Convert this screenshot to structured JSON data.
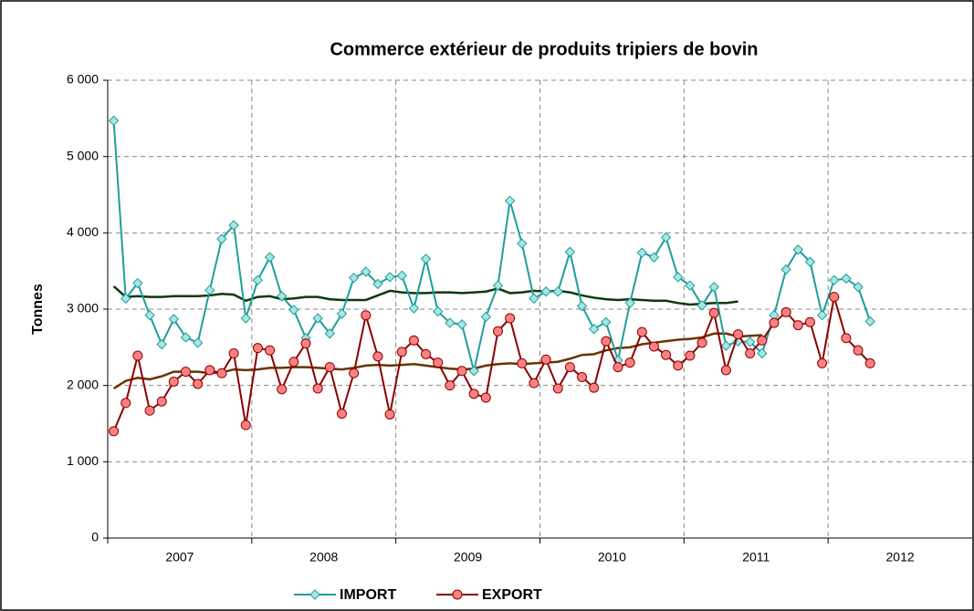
{
  "chart_data": {
    "type": "line",
    "title": "Commerce extérieur de produits tripiers de bovin",
    "y_label": "Tonnes",
    "categories": [
      null,
      null,
      null,
      null,
      null,
      null,
      null,
      null,
      null,
      null,
      null,
      null,
      null,
      null,
      null,
      null,
      null,
      null,
      null,
      null,
      null,
      null,
      null,
      null,
      null,
      null,
      null,
      null,
      null,
      null,
      null,
      null,
      null,
      null,
      null,
      null,
      null,
      null,
      null,
      null,
      null,
      null,
      null,
      null,
      null,
      null,
      null,
      null,
      null,
      null,
      null,
      null,
      null,
      null,
      null,
      null,
      null,
      null,
      null,
      null,
      null,
      null,
      null,
      null,
      null,
      null,
      null,
      null,
      null,
      null,
      null,
      null
    ],
    "category_groups": [
      "2007",
      "2008",
      "2009",
      "2010",
      "2011",
      "2012"
    ],
    "ylim": [
      0,
      6000
    ],
    "yticks": [
      0,
      {
        "value": 1000,
        "label": "1 000"
      },
      {
        "value": 2000,
        "label": "2 000"
      },
      {
        "value": 3000,
        "label": "3 000"
      },
      {
        "value": 4000,
        "label": "4 000"
      },
      {
        "value": 5000,
        "label": "5 000"
      },
      {
        "value": 6000,
        "label": "6 000"
      }
    ],
    "grid": true,
    "legend": "bottom",
    "series": [
      {
        "name": "IMPORT",
        "color": "#1f9e9a",
        "marker": "diamond",
        "marker_fill": "#a8e6e6",
        "values": [
          5470,
          3140,
          3340,
          2920,
          2540,
          2870,
          2630,
          2560,
          3250,
          3920,
          4100,
          2880,
          3380,
          3680,
          3170,
          2990,
          2620,
          2880,
          2680,
          2940,
          3410,
          3490,
          3330,
          3420,
          3440,
          3010,
          3660,
          2970,
          2820,
          2800,
          2190,
          2900,
          3310,
          4420,
          3860,
          3140,
          3230,
          3230,
          3750,
          3040,
          2740,
          2830,
          2330,
          3080,
          3740,
          3680,
          3940,
          3420,
          3310,
          3050,
          3290,
          2520,
          2580,
          2570,
          2420,
          2920,
          3520,
          3780,
          3620,
          2920,
          3380,
          3400,
          3290,
          2840,
          null,
          null,
          null,
          null,
          null,
          null,
          null,
          null
        ]
      },
      {
        "name": "EXPORT",
        "color": "#8b0000",
        "marker": "circle",
        "marker_fill": "#ff8080",
        "values": [
          1400,
          1770,
          2390,
          1670,
          1790,
          2050,
          2180,
          2020,
          2200,
          2160,
          2420,
          1480,
          2490,
          2460,
          1950,
          2310,
          2550,
          1960,
          2240,
          1630,
          2160,
          2920,
          2380,
          1620,
          2440,
          2590,
          2410,
          2300,
          2000,
          2190,
          1890,
          1840,
          2710,
          2880,
          2290,
          2030,
          2340,
          1960,
          2240,
          2110,
          1970,
          2580,
          2240,
          2300,
          2700,
          2510,
          2400,
          2260,
          2390,
          2560,
          2950,
          2200,
          2670,
          2420,
          2590,
          2820,
          2960,
          2790,
          2830,
          2290,
          3160,
          2620,
          2460,
          2290,
          null,
          null,
          null,
          null,
          null,
          null,
          null,
          null
        ]
      }
    ],
    "trendlines": [
      {
        "color": "#0b3a0b",
        "values": [
          3300,
          3160,
          3170,
          3160,
          3160,
          3170,
          3170,
          3170,
          3180,
          3200,
          3190,
          3110,
          3160,
          3170,
          3130,
          3140,
          3160,
          3160,
          3130,
          3120,
          3120,
          3120,
          3180,
          3240,
          3220,
          3210,
          3210,
          3220,
          3220,
          3210,
          3220,
          3230,
          3270,
          3210,
          3220,
          3240,
          3230,
          3240,
          3220,
          3180,
          3150,
          3130,
          3120,
          3130,
          3120,
          3110,
          3110,
          3080,
          3060,
          3070,
          3080,
          3080,
          3100,
          null,
          null,
          null,
          null,
          null,
          null,
          null,
          null,
          null,
          null,
          null,
          null,
          null,
          null,
          null,
          null,
          null,
          null,
          null
        ]
      },
      {
        "color": "#6b3300",
        "values": [
          1960,
          2060,
          2100,
          2080,
          2120,
          2180,
          2180,
          2180,
          2160,
          2170,
          2210,
          2200,
          2210,
          2230,
          2230,
          2240,
          2240,
          2230,
          2220,
          2210,
          2230,
          2260,
          2270,
          2260,
          2270,
          2280,
          2260,
          2240,
          2220,
          2210,
          2220,
          2260,
          2280,
          2290,
          2280,
          2290,
          2300,
          2310,
          2350,
          2400,
          2410,
          2460,
          2490,
          2500,
          2540,
          2560,
          2580,
          2600,
          2610,
          2630,
          2680,
          2680,
          2640,
          2650,
          2660,
          null,
          null,
          null,
          null,
          null,
          null,
          null,
          null,
          null,
          null,
          null,
          null,
          null,
          null,
          null,
          null,
          null
        ]
      }
    ]
  }
}
